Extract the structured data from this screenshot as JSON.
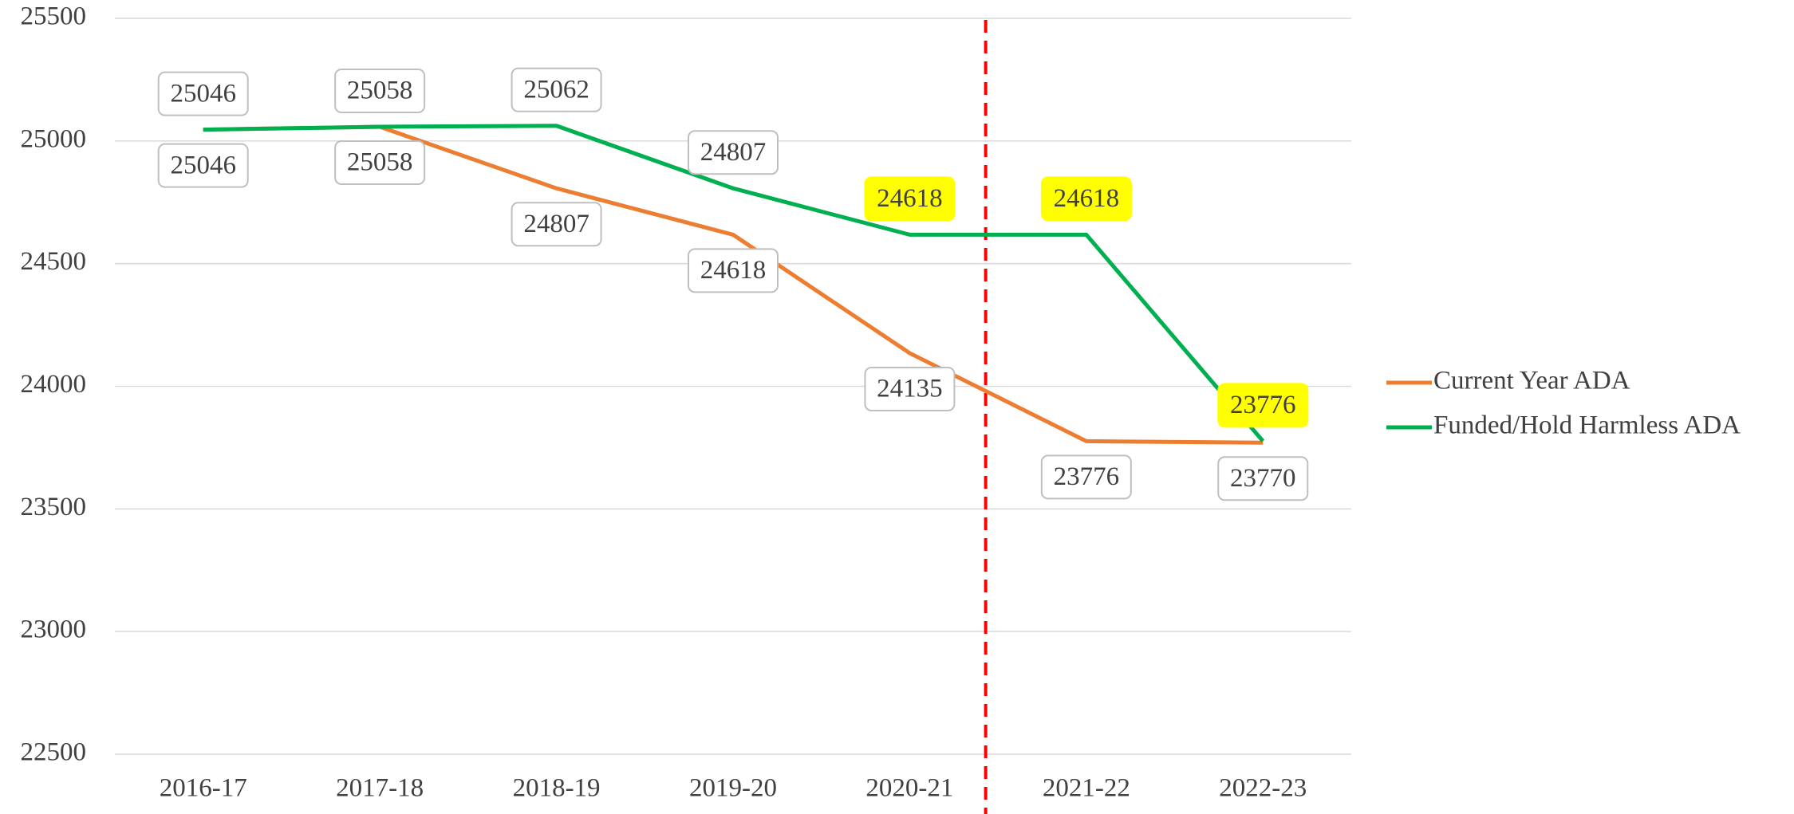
{
  "chart_data": {
    "type": "line",
    "categories": [
      "2016-17",
      "2017-18",
      "2018-19",
      "2019-20",
      "2020-21",
      "2021-22",
      "2022-23"
    ],
    "series": [
      {
        "name": "Current Year ADA",
        "color": "#ed7d31",
        "label_position": "below",
        "values": [
          25046,
          25058,
          24807,
          24618,
          24135,
          23776,
          23770
        ]
      },
      {
        "name": "Funded/Hold Harmless ADA",
        "color": "#00b050",
        "label_position": "above",
        "values": [
          25046,
          25058,
          25062,
          24807,
          24618,
          24618,
          23776
        ],
        "highlighted_labels": [
          4,
          5,
          6
        ],
        "highlight_color": "#ffff00"
      }
    ],
    "ylim": [
      22500,
      25500
    ],
    "yticks": [
      22500,
      23000,
      23500,
      24000,
      24500,
      25000,
      25500
    ],
    "grid": true,
    "legend": "right",
    "reference_line": {
      "x": 4.43,
      "color": "#ff0000"
    }
  }
}
